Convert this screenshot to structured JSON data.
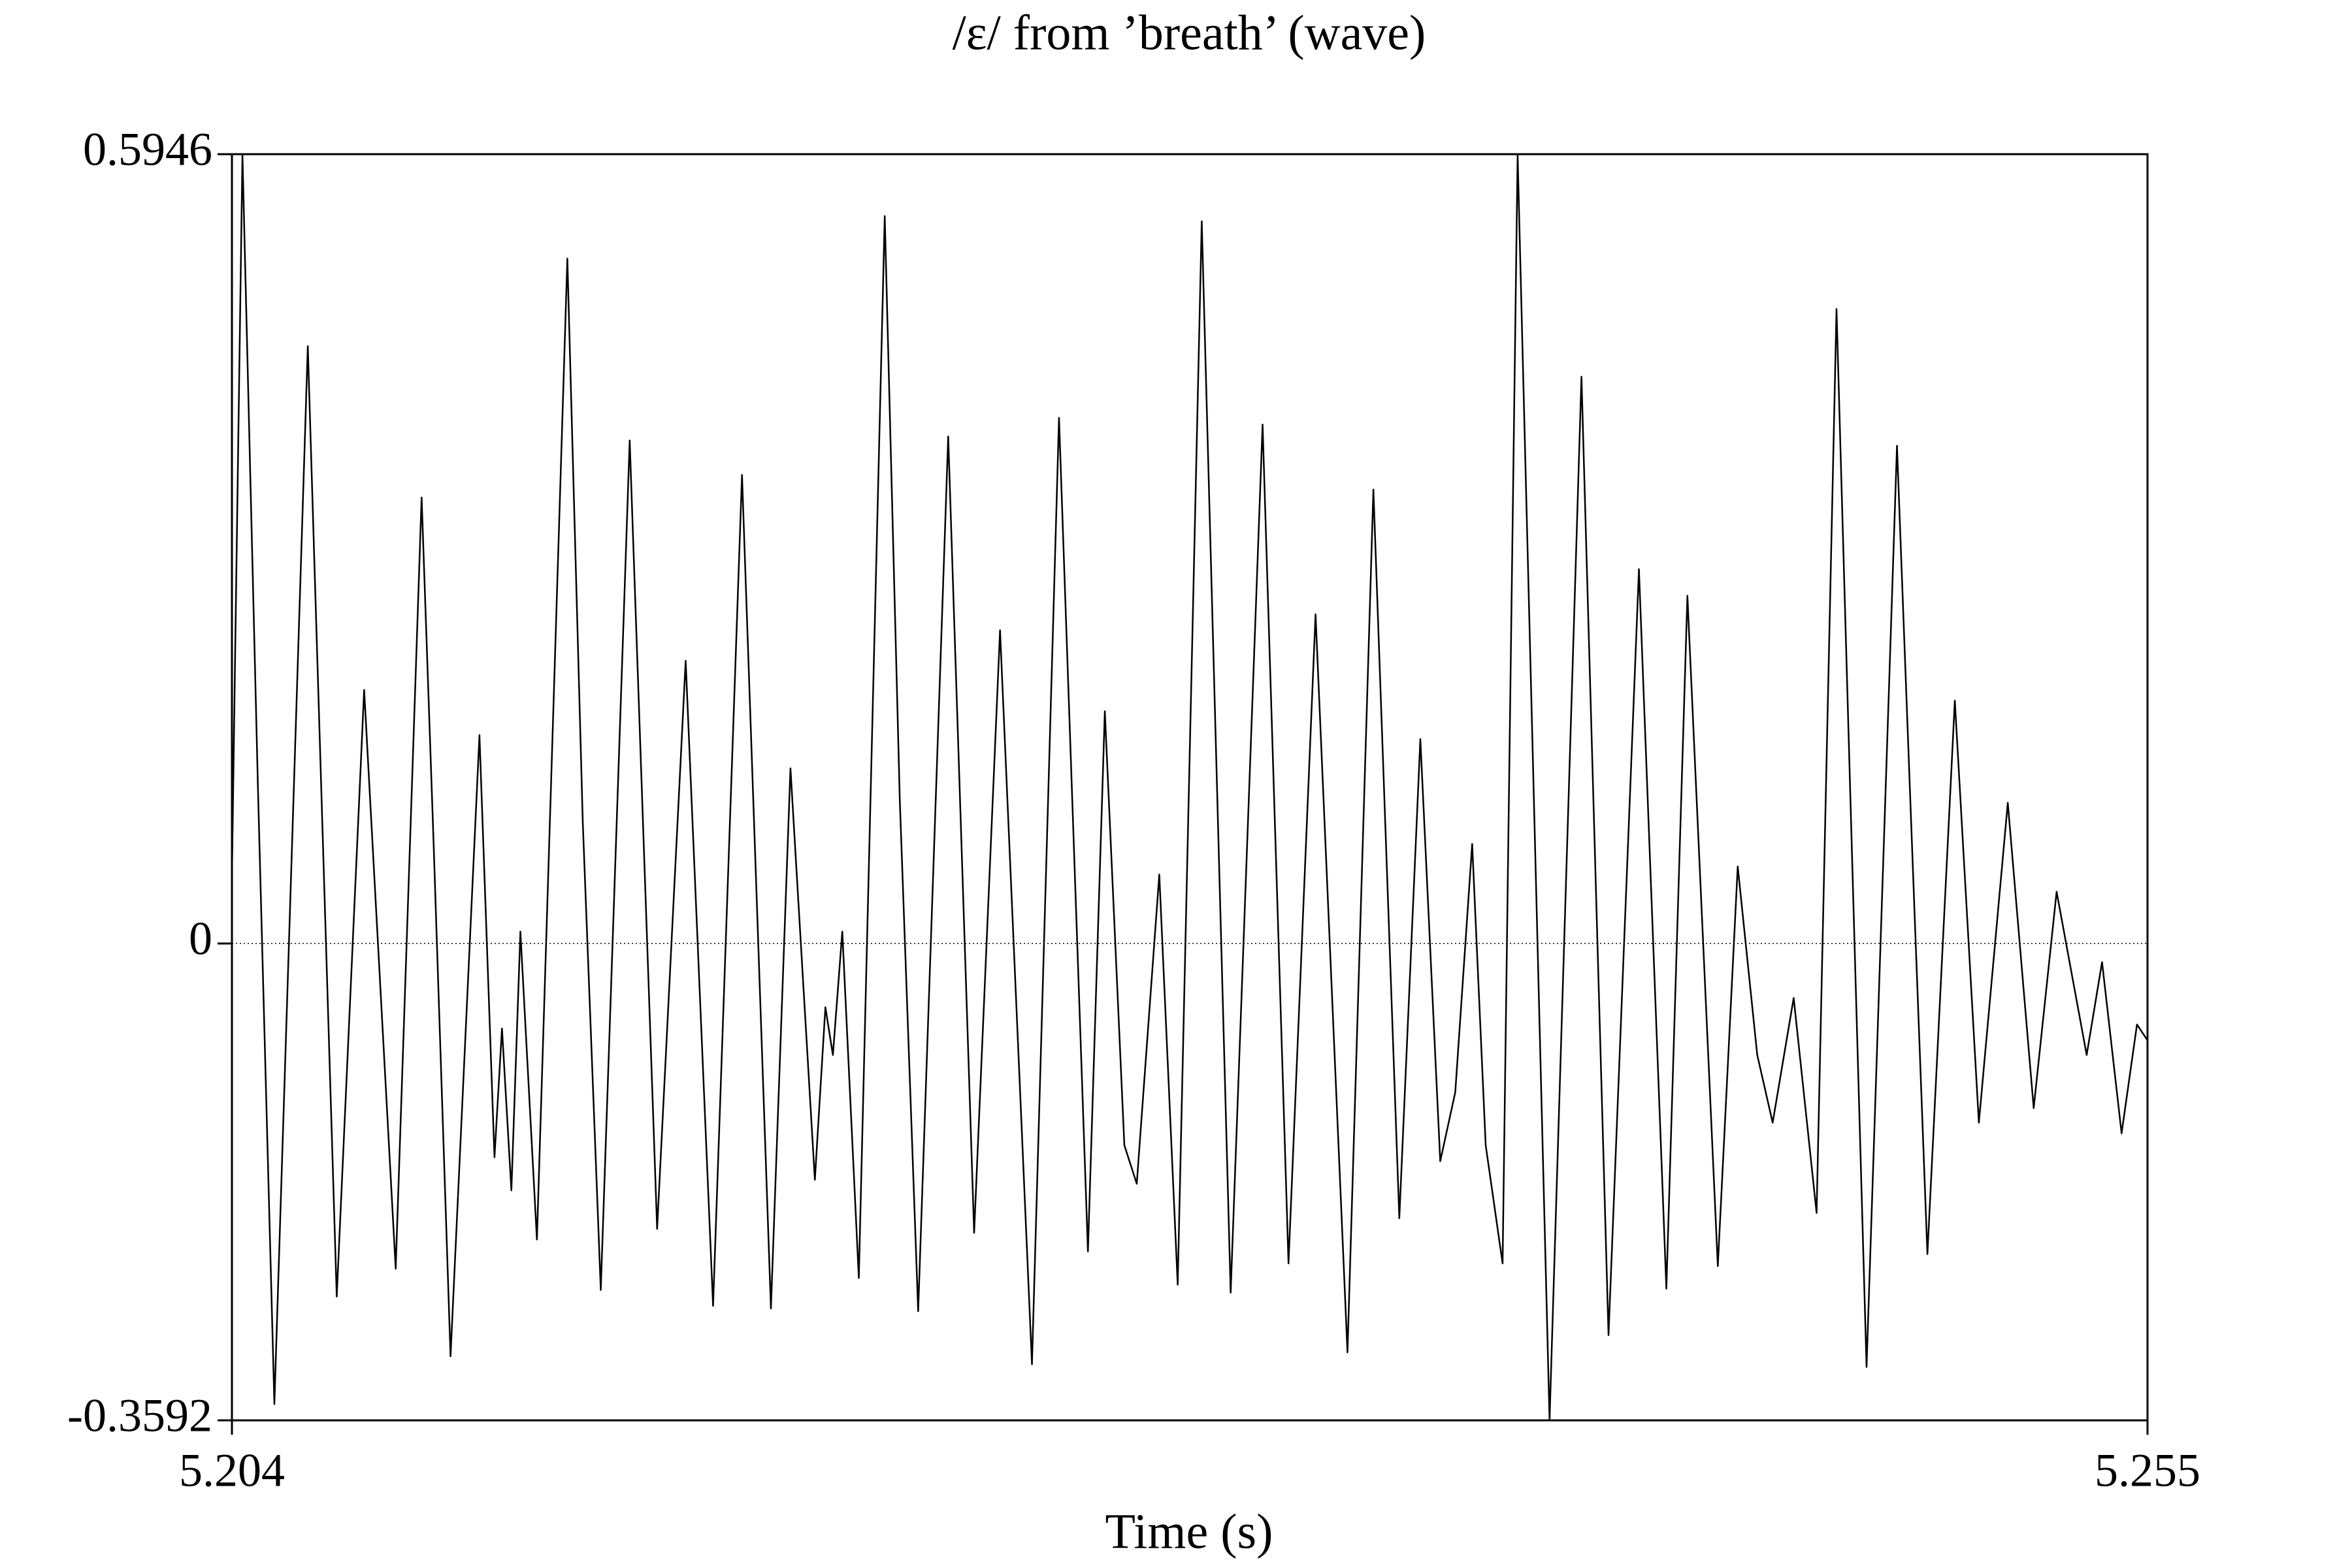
{
  "chart_data": {
    "type": "line",
    "title": "/ɛ/ from ’breath’ (wave)",
    "x_label": "Time (s)",
    "xlim": [
      5.204,
      5.255
    ],
    "xticks": [
      5.204,
      5.255
    ],
    "ylim": [
      -0.3592,
      0.5946
    ],
    "yticks": [
      0.5946,
      0,
      -0.3592
    ],
    "zero_line": true,
    "series": [
      {
        "color": "#000000",
        "x": [
          5.204,
          5.20428,
          5.20469,
          5.20513,
          5.20602,
          5.20679,
          5.20752,
          5.20836,
          5.20905,
          5.20937,
          5.20982,
          5.21059,
          5.21099,
          5.21119,
          5.21144,
          5.21168,
          5.21212,
          5.21293,
          5.21334,
          5.21382,
          5.21459,
          5.21532,
          5.21608,
          5.21681,
          5.21758,
          5.21835,
          5.21887,
          5.21952,
          5.2198,
          5.22,
          5.22025,
          5.22069,
          5.22138,
          5.22178,
          5.22227,
          5.22307,
          5.22376,
          5.22445,
          5.2253,
          5.22602,
          5.22679,
          5.22724,
          5.22776,
          5.22809,
          5.22869,
          5.22918,
          5.22982,
          5.23059,
          5.23144,
          5.23213,
          5.23285,
          5.2337,
          5.23439,
          5.23508,
          5.23564,
          5.23617,
          5.23657,
          5.23702,
          5.23738,
          5.23783,
          5.23823,
          5.23908,
          5.23993,
          5.24065,
          5.24146,
          5.24219,
          5.24275,
          5.24356,
          5.24409,
          5.24461,
          5.24502,
          5.24558,
          5.24619,
          5.24672,
          5.24752,
          5.24833,
          5.24914,
          5.24987,
          5.25051,
          5.25128,
          5.25197,
          5.25258,
          5.25338,
          5.25379,
          5.25431,
          5.25472,
          5.255
        ],
        "values": [
          0.052,
          0.594,
          0.12,
          -0.347,
          0.45,
          -0.266,
          0.191,
          -0.245,
          0.336,
          0.075,
          -0.311,
          0.157,
          -0.161,
          -0.064,
          -0.186,
          0.009,
          -0.223,
          0.516,
          0.092,
          -0.261,
          0.379,
          -0.215,
          0.213,
          -0.273,
          0.353,
          -0.275,
          0.132,
          -0.178,
          -0.048,
          -0.084,
          0.009,
          -0.252,
          0.548,
          0.109,
          -0.277,
          0.382,
          -0.218,
          0.236,
          -0.317,
          0.396,
          -0.232,
          0.175,
          -0.152,
          -0.181,
          0.052,
          -0.257,
          0.544,
          -0.263,
          0.391,
          -0.241,
          0.248,
          -0.308,
          0.342,
          -0.207,
          0.154,
          -0.164,
          -0.112,
          0.075,
          -0.152,
          -0.241,
          0.594,
          -0.3592,
          0.427,
          -0.295,
          0.282,
          -0.26,
          0.262,
          -0.243,
          0.058,
          -0.084,
          -0.135,
          -0.041,
          -0.203,
          0.478,
          -0.319,
          0.375,
          -0.234,
          0.183,
          -0.135,
          0.106,
          -0.124,
          0.039,
          -0.084,
          -0.014,
          -0.143,
          -0.061,
          -0.073
        ]
      }
    ]
  }
}
